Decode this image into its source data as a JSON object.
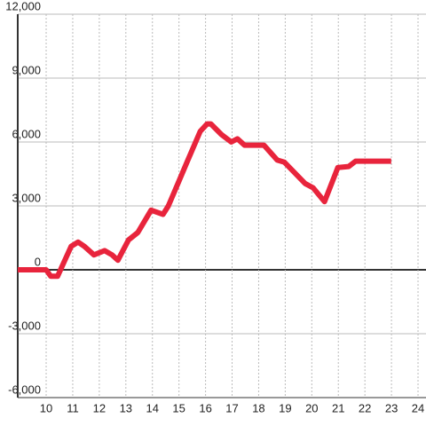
{
  "chart_data": {
    "type": "line",
    "x": [
      8.93,
      10,
      10.17,
      10.43,
      10.94,
      11.2,
      11.44,
      11.8,
      12.2,
      12.48,
      12.7,
      13.1,
      13.45,
      13.95,
      14.4,
      14.6,
      14.96,
      15.3,
      15.8,
      16.06,
      16.2,
      16.6,
      16.97,
      17.2,
      17.47,
      18.2,
      18.7,
      18.97,
      19.75,
      20.05,
      20.48,
      20.98,
      21.39,
      21.65,
      22.99
    ],
    "series": [
      {
        "color": "#e8243c",
        "values": [
          0,
          0,
          -300,
          -300,
          1100,
          1300,
          1100,
          700,
          900,
          700,
          450,
          1400,
          1750,
          2800,
          2600,
          3000,
          4050,
          5050,
          6500,
          6850,
          6850,
          6350,
          6000,
          6150,
          5850,
          5850,
          5150,
          5050,
          4050,
          3850,
          3200,
          4800,
          4850,
          5100,
          5100
        ]
      }
    ],
    "xlim": [
      8.93,
      24.3
    ],
    "ylim": [
      -6000,
      12000
    ],
    "xticks": [
      10,
      11,
      12,
      13,
      14,
      15,
      16,
      17,
      18,
      19,
      20,
      21,
      22,
      23,
      24
    ],
    "yticks": [
      {
        "value": -6000,
        "label": "-6,000"
      },
      {
        "value": -3000,
        "label": "-3,000"
      },
      0,
      {
        "value": 3000,
        "label": "3,000"
      },
      {
        "value": 6000,
        "label": "6,000"
      },
      {
        "value": 9000,
        "label": "9,000"
      },
      {
        "value": 12000,
        "label": "12,000"
      }
    ],
    "grid": true
  }
}
